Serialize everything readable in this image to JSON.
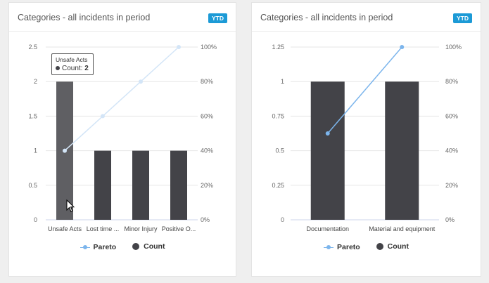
{
  "cards": [
    {
      "title": "Categories - all incidents in period",
      "badge": "YTD",
      "legend": {
        "pareto": "Pareto",
        "count": "Count"
      },
      "tooltip": {
        "category": "Unsafe Acts",
        "label": "Count:",
        "value": "2"
      }
    },
    {
      "title": "Categories - all incidents in period",
      "badge": "YTD",
      "legend": {
        "pareto": "Pareto",
        "count": "Count"
      }
    }
  ],
  "chart_data": [
    {
      "type": "bar",
      "categories": [
        "Unsafe Acts",
        "Lost time ...",
        "Minor Injury",
        "Positive O..."
      ],
      "series": [
        {
          "name": "Count",
          "type": "bar",
          "values": [
            2,
            1,
            1,
            1
          ],
          "color": "#434348"
        },
        {
          "name": "Pareto",
          "type": "line",
          "values": [
            40,
            60,
            80,
            100
          ],
          "color": "#7cb5ec"
        }
      ],
      "y_left": {
        "ticks": [
          "0",
          "0.5",
          "1",
          "1.5",
          "2",
          "2.5"
        ],
        "range": [
          0,
          2.5
        ]
      },
      "y_right": {
        "ticks": [
          "0%",
          "20%",
          "40%",
          "60%",
          "80%",
          "100%"
        ],
        "range": [
          0,
          100
        ]
      },
      "highlighted_category": "Unsafe Acts",
      "grid": true
    },
    {
      "type": "bar",
      "categories": [
        "Documentation",
        "Material and equipment"
      ],
      "series": [
        {
          "name": "Count",
          "type": "bar",
          "values": [
            1,
            1
          ],
          "color": "#434348"
        },
        {
          "name": "Pareto",
          "type": "line",
          "values": [
            50,
            100
          ],
          "color": "#7cb5ec"
        }
      ],
      "y_left": {
        "ticks": [
          "0",
          "0.25",
          "0.5",
          "0.75",
          "1",
          "1.25"
        ],
        "range": [
          0,
          1.25
        ]
      },
      "y_right": {
        "ticks": [
          "0%",
          "20%",
          "40%",
          "60%",
          "80%",
          "100%"
        ],
        "range": [
          0,
          100
        ]
      },
      "grid": true
    }
  ]
}
